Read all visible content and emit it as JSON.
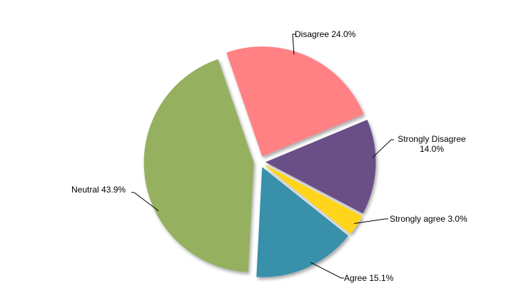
{
  "chart_data": {
    "type": "pie",
    "title": "",
    "slices": [
      {
        "label_lines": [
          "Disagree 24.0%"
        ],
        "value": 24.0,
        "color": "#ff8184"
      },
      {
        "label_lines": [
          "Strongly Disagree",
          "14.0%"
        ],
        "value": 14.0,
        "color": "#695086"
      },
      {
        "label_lines": [
          "Strongly agree 3.0%"
        ],
        "value": 3.0,
        "color": "#ffd51d"
      },
      {
        "label_lines": [
          "Agree 15.1%"
        ],
        "value": 15.1,
        "color": "#3990aa"
      },
      {
        "label_lines": [
          "Neutral 43.9%"
        ],
        "value": 43.9,
        "color": "#95b05e"
      }
    ],
    "exploded": true,
    "labels_outside": true,
    "legend": "none"
  }
}
